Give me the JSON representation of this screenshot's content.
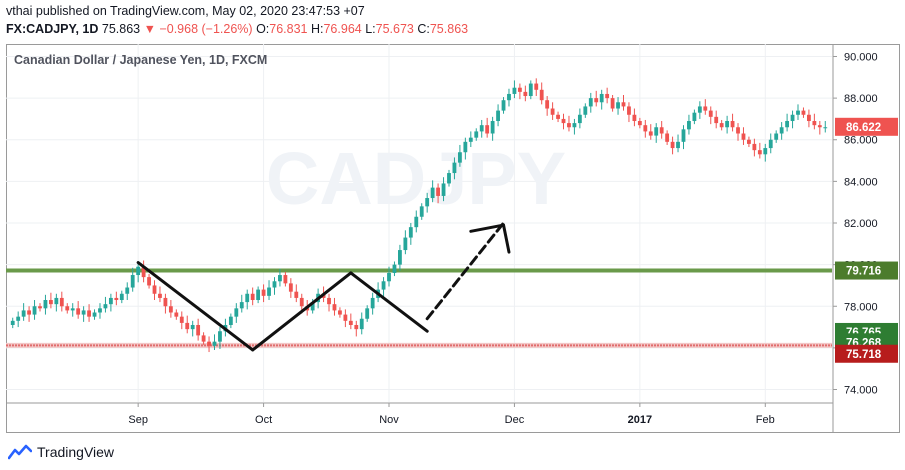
{
  "header": {
    "published_line": "vthai published on TradingView.com, May 02, 2020 23:47:53 +07",
    "symbol": "FX:CADJPY, 1D",
    "last": "75.863",
    "change": "−0.968 (−1.26%)",
    "o_label": "O:",
    "o_value": "76.831",
    "h_label": "H:",
    "h_value": "76.964",
    "l_label": "L:",
    "l_value": "75.673",
    "c_label": "C:",
    "c_value": "75.863"
  },
  "chart_data": {
    "type": "candlestick",
    "title": "Canadian Dollar / Japanese Yen, 1D, FXCM",
    "watermark": "CADJPY",
    "y_ticks": [
      "74.000",
      "76.000",
      "78.000",
      "80.000",
      "82.000",
      "84.000",
      "86.000",
      "88.000",
      "90.000"
    ],
    "ylim": [
      73.4,
      90.6
    ],
    "x_ticks": [
      "Sep",
      "Oct",
      "Nov",
      "Dec",
      "2017",
      "Feb"
    ],
    "x_tick_positions": [
      23,
      46,
      69,
      92,
      115,
      138
    ],
    "n_bars": 150,
    "levels": [
      {
        "name": "resistance",
        "value": 79.716,
        "color": "#6a9a4a"
      },
      {
        "name": "support",
        "value": 76.12,
        "color": "#e06c6c"
      }
    ],
    "price_labels": [
      {
        "text": "86.622",
        "value": 86.622,
        "color": "#ef5350"
      },
      {
        "text": "79.716",
        "value": 79.716,
        "color": "#4c7c2c"
      },
      {
        "text": "76.765",
        "value": 76.765,
        "color": "#2e7d32"
      },
      {
        "text": "76.268",
        "value": 76.268,
        "color": "#2e7d32"
      },
      {
        "text": "75.718",
        "value": 75.718,
        "color": "#b71c1c"
      }
    ],
    "bullish_color": "#26a69a",
    "bearish_color": "#ef5350",
    "closes": [
      77.3,
      77.5,
      77.8,
      77.6,
      78.0,
      77.9,
      78.3,
      78.1,
      78.4,
      78.0,
      77.8,
      77.9,
      77.6,
      77.8,
      77.5,
      77.7,
      77.9,
      78.1,
      78.4,
      78.3,
      78.6,
      78.9,
      79.5,
      79.9,
      79.4,
      79.0,
      78.6,
      78.4,
      78.0,
      77.7,
      77.5,
      77.2,
      76.9,
      77.1,
      76.6,
      76.3,
      76.1,
      76.3,
      76.8,
      77.1,
      77.5,
      77.9,
      78.2,
      78.6,
      78.3,
      78.8,
      78.5,
      78.9,
      79.2,
      79.5,
      79.1,
      78.7,
      78.4,
      78.0,
      77.8,
      78.2,
      78.6,
      78.4,
      78.1,
      77.8,
      77.6,
      77.3,
      77.1,
      76.9,
      77.4,
      77.9,
      78.4,
      78.8,
      79.2,
      79.6,
      80.0,
      80.7,
      81.3,
      81.8,
      82.3,
      82.8,
      83.2,
      83.7,
      83.3,
      83.9,
      84.4,
      84.9,
      85.4,
      85.9,
      86.1,
      86.4,
      86.7,
      86.3,
      86.9,
      87.4,
      87.9,
      88.2,
      88.5,
      88.3,
      88.1,
      88.7,
      88.4,
      87.9,
      87.5,
      87.2,
      87.0,
      86.8,
      86.6,
      86.8,
      87.2,
      87.6,
      88.0,
      87.8,
      88.2,
      88.0,
      87.5,
      87.8,
      87.6,
      87.2,
      86.9,
      86.7,
      86.4,
      86.2,
      86.6,
      86.3,
      85.9,
      85.6,
      85.9,
      86.5,
      86.9,
      87.3,
      87.6,
      87.4,
      87.1,
      86.8,
      86.6,
      86.9,
      86.6,
      86.3,
      86.0,
      85.8,
      85.5,
      85.3,
      85.6,
      86.0,
      86.3,
      86.6,
      86.9,
      87.2,
      87.4,
      87.2,
      86.9,
      86.7,
      86.6,
      86.6
    ]
  },
  "footer": {
    "brand": "TradingView"
  }
}
